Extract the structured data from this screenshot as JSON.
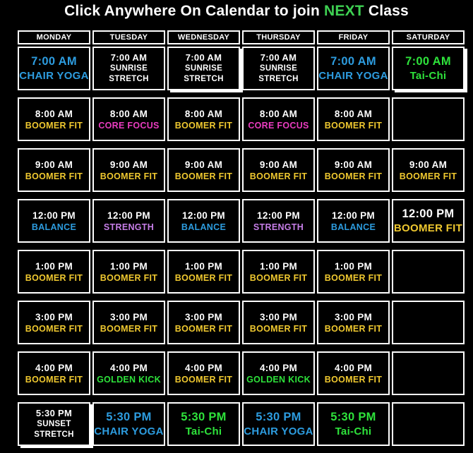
{
  "title": {
    "prefix": "Click Anywhere On Calendar to join ",
    "highlight": "NEXT",
    "suffix": " Class"
  },
  "palette": {
    "white": "#FFFFFF",
    "blue": "#2D9CDF",
    "yellow": "#EFC82F",
    "pink": "#EA3CC0",
    "purple": "#C77EE8",
    "green": "#2EE23B",
    "title_green": "#3ED052"
  },
  "days": [
    "MONDAY",
    "TUESDAY",
    "WEDNESDAY",
    "THURSDAY",
    "FRIDAY",
    "SATURDAY"
  ],
  "rows": [
    {
      "cells": [
        {
          "t": "7:00 AM",
          "n": "CHAIR YOGA",
          "tc": "blue",
          "nc": "blue",
          "size": "lg"
        },
        {
          "t": "7:00 AM",
          "n": "SUNRISE\nSTRETCH",
          "tc": "white",
          "nc": "white",
          "size": "sm"
        },
        {
          "t": "7:00 AM",
          "n": "SUNRISE\nSTRETCH",
          "tc": "white",
          "nc": "white",
          "size": "sm",
          "pressed": true
        },
        {
          "t": "7:00 AM",
          "n": "SUNRISE\nSTRETCH",
          "tc": "white",
          "nc": "white",
          "size": "sm"
        },
        {
          "t": "7:00 AM",
          "n": "CHAIR YOGA",
          "tc": "blue",
          "nc": "blue",
          "size": "lg"
        },
        {
          "t": "7:00 AM",
          "n": "Tai-Chi",
          "tc": "green",
          "nc": "green",
          "size": "lg",
          "pressed": true
        }
      ]
    },
    {
      "cells": [
        {
          "t": "8:00 AM",
          "n": "BOOMER FIT",
          "tc": "white",
          "nc": "yellow",
          "size": "md"
        },
        {
          "t": "8:00 AM",
          "n": "CORE FOCUS",
          "tc": "white",
          "nc": "pink",
          "size": "md"
        },
        {
          "t": "8:00 AM",
          "n": "BOOMER FIT",
          "tc": "white",
          "nc": "yellow",
          "size": "md"
        },
        {
          "t": "8:00 AM",
          "n": "CORE FOCUS",
          "tc": "white",
          "nc": "pink",
          "size": "md"
        },
        {
          "t": "8:00 AM",
          "n": "BOOMER FIT",
          "tc": "white",
          "nc": "yellow",
          "size": "md"
        },
        {
          "empty": true
        }
      ]
    },
    {
      "cells": [
        {
          "t": "9:00 AM",
          "n": "BOOMER FIT",
          "tc": "white",
          "nc": "yellow",
          "size": "md"
        },
        {
          "t": "9:00 AM",
          "n": "BOOMER FIT",
          "tc": "white",
          "nc": "yellow",
          "size": "md"
        },
        {
          "t": "9:00 AM",
          "n": "BOOMER FIT",
          "tc": "white",
          "nc": "yellow",
          "size": "md"
        },
        {
          "t": "9:00 AM",
          "n": "BOOMER FIT",
          "tc": "white",
          "nc": "yellow",
          "size": "md"
        },
        {
          "t": "9:00 AM",
          "n": "BOOMER FIT",
          "tc": "white",
          "nc": "yellow",
          "size": "md"
        },
        {
          "t": "9:00 AM",
          "n": "BOOMER FIT",
          "tc": "white",
          "nc": "yellow",
          "size": "md"
        }
      ]
    },
    {
      "cells": [
        {
          "t": "12:00 PM",
          "n": "BALANCE",
          "tc": "white",
          "nc": "blue",
          "size": "md"
        },
        {
          "t": "12:00 PM",
          "n": "STRENGTH",
          "tc": "white",
          "nc": "purple",
          "size": "md"
        },
        {
          "t": "12:00 PM",
          "n": "BALANCE",
          "tc": "white",
          "nc": "blue",
          "size": "md"
        },
        {
          "t": "12:00 PM",
          "n": "STRENGTH",
          "tc": "white",
          "nc": "purple",
          "size": "md"
        },
        {
          "t": "12:00 PM",
          "n": "BALANCE",
          "tc": "white",
          "nc": "blue",
          "size": "md"
        },
        {
          "t": "12:00 PM",
          "n": "BOOMER FIT",
          "tc": "white",
          "nc": "yellow",
          "size": "lg"
        }
      ]
    },
    {
      "cells": [
        {
          "t": "1:00 PM",
          "n": "BOOMER FIT",
          "tc": "white",
          "nc": "yellow",
          "size": "md"
        },
        {
          "t": "1:00 PM",
          "n": "BOOMER FIT",
          "tc": "white",
          "nc": "yellow",
          "size": "md"
        },
        {
          "t": "1:00 PM",
          "n": "BOOMER FIT",
          "tc": "white",
          "nc": "yellow",
          "size": "md"
        },
        {
          "t": "1:00 PM",
          "n": "BOOMER FIT",
          "tc": "white",
          "nc": "yellow",
          "size": "md"
        },
        {
          "t": "1:00 PM",
          "n": "BOOMER FIT",
          "tc": "white",
          "nc": "yellow",
          "size": "md"
        },
        {
          "empty": true
        }
      ]
    },
    {
      "cells": [
        {
          "t": "3:00 PM",
          "n": "BOOMER FIT",
          "tc": "white",
          "nc": "yellow",
          "size": "md"
        },
        {
          "t": "3:00 PM",
          "n": "BOOMER FIT",
          "tc": "white",
          "nc": "yellow",
          "size": "md"
        },
        {
          "t": "3:00 PM",
          "n": "BOOMER FIT",
          "tc": "white",
          "nc": "yellow",
          "size": "md"
        },
        {
          "t": "3:00 PM",
          "n": "BOOMER FIT",
          "tc": "white",
          "nc": "yellow",
          "size": "md"
        },
        {
          "t": "3:00 PM",
          "n": "BOOMER FIT",
          "tc": "white",
          "nc": "yellow",
          "size": "md"
        },
        {
          "empty": true
        }
      ]
    },
    {
      "cells": [
        {
          "t": "4:00 PM",
          "n": "BOOMER FIT",
          "tc": "white",
          "nc": "yellow",
          "size": "md"
        },
        {
          "t": "4:00 PM",
          "n": "GOLDEN KICK",
          "tc": "white",
          "nc": "green",
          "size": "md"
        },
        {
          "t": "4:00 PM",
          "n": "BOOMER FIT",
          "tc": "white",
          "nc": "yellow",
          "size": "md"
        },
        {
          "t": "4:00 PM",
          "n": "GOLDEN KICK",
          "tc": "white",
          "nc": "green",
          "size": "md"
        },
        {
          "t": "4:00 PM",
          "n": "BOOMER FIT",
          "tc": "white",
          "nc": "yellow",
          "size": "md"
        },
        {
          "empty": true
        }
      ]
    },
    {
      "cells": [
        {
          "t": "5:30 PM",
          "n": "SUNSET\nSTRETCH",
          "tc": "white",
          "nc": "white",
          "size": "sm",
          "pressed": true
        },
        {
          "t": "5:30 PM",
          "n": "CHAIR YOGA",
          "tc": "blue",
          "nc": "blue",
          "size": "lg"
        },
        {
          "t": "5:30 PM",
          "n": "Tai-Chi",
          "tc": "green",
          "nc": "green",
          "size": "lg"
        },
        {
          "t": "5:30 PM",
          "n": "CHAIR YOGA",
          "tc": "blue",
          "nc": "blue",
          "size": "lg"
        },
        {
          "t": "5:30 PM",
          "n": "Tai-Chi",
          "tc": "green",
          "nc": "green",
          "size": "lg"
        },
        {
          "empty": true
        }
      ]
    }
  ]
}
